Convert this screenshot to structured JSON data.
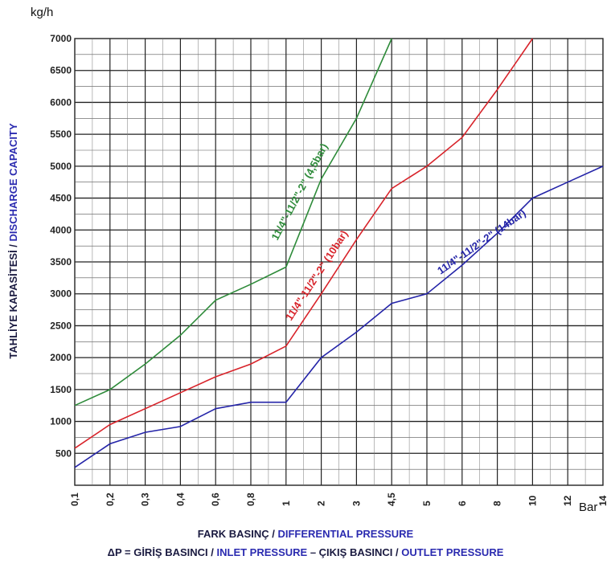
{
  "chart_data": {
    "type": "line",
    "y_unit": "kg/h",
    "x_unit": "Bar",
    "ylabel_tr": "TAHLİYE KAPASİTESİ",
    "ylabel_sep": " / ",
    "ylabel_en": "DISCHARGE CAPACITY",
    "xlabel_line1_tr": "FARK BASINÇ",
    "xlabel_line1_en": "DIFFERENTIAL PRESSURE",
    "xlabel_line2_a": "ΔP = GİRİŞ BASINCI",
    "xlabel_line2_b": "INLET PRESSURE",
    "xlabel_line2_c": "– ÇIKIŞ BASINCI",
    "xlabel_line2_d": "OUTLET PRESSURE",
    "sep": " / ",
    "x_ticks": [
      "0,1",
      "0,2",
      "0,3",
      "0,4",
      "0,6",
      "0,8",
      "1",
      "2",
      "3",
      "4,5",
      "5",
      "6",
      "8",
      "10",
      "12",
      "14"
    ],
    "y_ticks": [
      500,
      1000,
      1500,
      2000,
      2500,
      3000,
      3500,
      4000,
      4500,
      5000,
      5500,
      6000,
      6500,
      7000
    ],
    "ylim": [
      0,
      7000
    ],
    "grid": true,
    "series": [
      {
        "name": "11/4\"-11/2\"-2\" (4,5bar)",
        "color": "#2e8b3a",
        "points": [
          [
            "0,1",
            1250
          ],
          [
            "0,2",
            1500
          ],
          [
            "0,3",
            1900
          ],
          [
            "0,4",
            2350
          ],
          [
            "0,6",
            2900
          ],
          [
            "0,8",
            3150
          ],
          [
            "1",
            3420
          ],
          [
            "2",
            4800
          ],
          [
            "3",
            5750
          ],
          [
            "4,5",
            7000
          ]
        ]
      },
      {
        "name": "11/4\"-11/2\"-2\" (10bar)",
        "color": "#d8232a",
        "points": [
          [
            "0,1",
            580
          ],
          [
            "0,2",
            950
          ],
          [
            "0,3",
            1200
          ],
          [
            "0,4",
            1450
          ],
          [
            "0,6",
            1700
          ],
          [
            "0,8",
            1900
          ],
          [
            "1",
            2180
          ],
          [
            "2",
            3000
          ],
          [
            "3",
            3850
          ],
          [
            "4,5",
            4650
          ],
          [
            "5",
            5000
          ],
          [
            "6",
            5450
          ],
          [
            "8",
            6200
          ],
          [
            "10",
            7000
          ]
        ]
      },
      {
        "name": "11/4\"-11/2\"-2\" (14bar)",
        "color": "#2424a8",
        "points": [
          [
            "0,1",
            280
          ],
          [
            "0,2",
            650
          ],
          [
            "0,3",
            830
          ],
          [
            "0,4",
            920
          ],
          [
            "0,6",
            1200
          ],
          [
            "0,8",
            1300
          ],
          [
            "1",
            1300
          ],
          [
            "2",
            2000
          ],
          [
            "3",
            2400
          ],
          [
            "4,5",
            2850
          ],
          [
            "5",
            3000
          ],
          [
            "6",
            3450
          ],
          [
            "8",
            3950
          ],
          [
            "10",
            4500
          ],
          [
            "12",
            4750
          ],
          [
            "14",
            5000
          ]
        ]
      }
    ]
  }
}
